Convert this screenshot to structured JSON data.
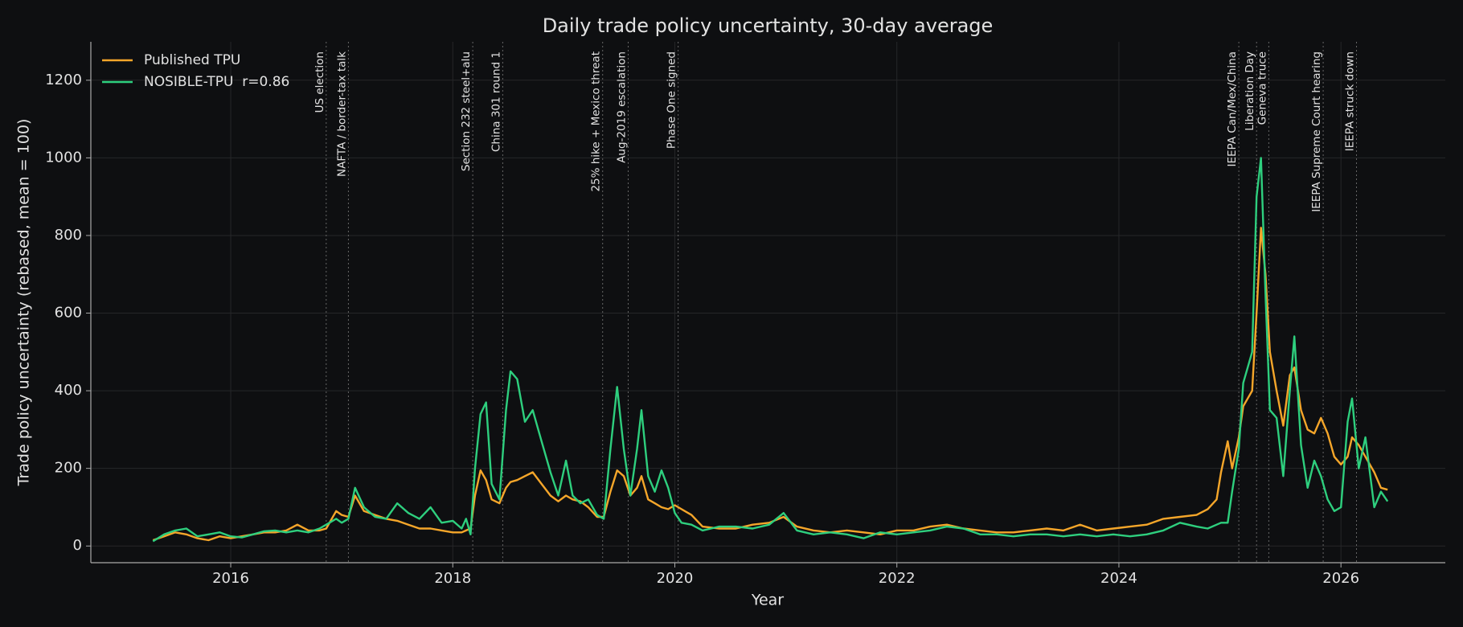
{
  "chart_data": {
    "type": "line",
    "title": "Daily trade policy uncertainty, 30-day average",
    "xlabel": "Year",
    "ylabel": "Trade policy uncertainty (rebased, mean = 100)",
    "xlim": [
      2014.74,
      2026.94
    ],
    "ylim": [
      -43,
      1299
    ],
    "xticks": [
      2016,
      2018,
      2020,
      2022,
      2024,
      2026
    ],
    "yticks": [
      0,
      200,
      400,
      600,
      800,
      1000,
      1200
    ],
    "grid": true,
    "legend": "upper left",
    "x": [
      2015.3,
      2015.4,
      2015.5,
      2015.6,
      2015.7,
      2015.8,
      2015.9,
      2016.0,
      2016.1,
      2016.2,
      2016.3,
      2016.4,
      2016.5,
      2016.6,
      2016.7,
      2016.8,
      2016.86,
      2016.95,
      2017.0,
      2017.06,
      2017.12,
      2017.2,
      2017.3,
      2017.4,
      2017.5,
      2017.6,
      2017.7,
      2017.8,
      2017.9,
      2018.0,
      2018.08,
      2018.12,
      2018.16,
      2018.2,
      2018.25,
      2018.3,
      2018.35,
      2018.42,
      2018.48,
      2018.52,
      2018.58,
      2018.65,
      2018.72,
      2018.8,
      2018.88,
      2018.95,
      2019.02,
      2019.08,
      2019.15,
      2019.22,
      2019.3,
      2019.36,
      2019.42,
      2019.48,
      2019.54,
      2019.6,
      2019.66,
      2019.7,
      2019.76,
      2019.82,
      2019.88,
      2019.94,
      2020.0,
      2020.06,
      2020.15,
      2020.25,
      2020.4,
      2020.55,
      2020.7,
      2020.85,
      2020.98,
      2021.1,
      2021.25,
      2021.4,
      2021.55,
      2021.7,
      2021.85,
      2022.0,
      2022.15,
      2022.3,
      2022.45,
      2022.6,
      2022.75,
      2022.9,
      2023.05,
      2023.2,
      2023.35,
      2023.5,
      2023.65,
      2023.8,
      2023.95,
      2024.1,
      2024.25,
      2024.4,
      2024.55,
      2024.7,
      2024.8,
      2024.88,
      2024.92,
      2024.98,
      2025.02,
      2025.08,
      2025.12,
      2025.16,
      2025.2,
      2025.24,
      2025.28,
      2025.32,
      2025.36,
      2025.42,
      2025.48,
      2025.54,
      2025.58,
      2025.64,
      2025.7,
      2025.76,
      2025.82,
      2025.88,
      2025.94,
      2026.0,
      2026.06,
      2026.1,
      2026.16,
      2026.22,
      2026.3,
      2026.36,
      2026.42
    ],
    "series": [
      {
        "name": "Published TPU",
        "color": "#f5a62a",
        "values": [
          15,
          25,
          35,
          30,
          20,
          15,
          25,
          20,
          25,
          30,
          35,
          35,
          40,
          55,
          40,
          40,
          45,
          90,
          80,
          75,
          130,
          90,
          80,
          70,
          65,
          55,
          45,
          45,
          40,
          35,
          35,
          40,
          45,
          130,
          195,
          170,
          120,
          110,
          150,
          165,
          170,
          180,
          190,
          160,
          130,
          115,
          130,
          120,
          115,
          100,
          75,
          75,
          140,
          195,
          180,
          130,
          150,
          180,
          120,
          110,
          100,
          95,
          105,
          95,
          80,
          50,
          45,
          45,
          55,
          60,
          75,
          50,
          40,
          35,
          40,
          35,
          30,
          40,
          40,
          50,
          55,
          45,
          40,
          35,
          35,
          40,
          45,
          40,
          55,
          40,
          45,
          50,
          55,
          70,
          75,
          80,
          95,
          120,
          190,
          270,
          200,
          280,
          360,
          380,
          400,
          600,
          820,
          700,
          500,
          400,
          310,
          440,
          460,
          350,
          300,
          290,
          330,
          290,
          230,
          210,
          230,
          280,
          260,
          230,
          190,
          150,
          145
        ]
      },
      {
        "name": "NOSIBLE-TPU  r=0.86",
        "color": "#2ecf7e",
        "values": [
          12,
          30,
          40,
          45,
          25,
          30,
          35,
          25,
          22,
          30,
          38,
          40,
          35,
          40,
          35,
          45,
          55,
          70,
          60,
          70,
          150,
          100,
          75,
          70,
          110,
          85,
          70,
          100,
          60,
          65,
          45,
          70,
          30,
          200,
          340,
          370,
          160,
          120,
          350,
          450,
          430,
          320,
          350,
          270,
          190,
          130,
          220,
          130,
          110,
          120,
          80,
          70,
          250,
          410,
          250,
          130,
          250,
          350,
          180,
          140,
          195,
          150,
          85,
          60,
          55,
          40,
          50,
          50,
          45,
          55,
          85,
          40,
          30,
          35,
          30,
          20,
          35,
          30,
          35,
          40,
          50,
          45,
          30,
          30,
          25,
          30,
          30,
          25,
          30,
          25,
          30,
          25,
          30,
          40,
          60,
          50,
          45,
          55,
          60,
          60,
          140,
          250,
          420,
          460,
          500,
          900,
          1000,
          650,
          350,
          330,
          180,
          400,
          540,
          260,
          150,
          220,
          180,
          120,
          90,
          100,
          320,
          380,
          200,
          280,
          100,
          140,
          115
        ]
      }
    ],
    "events": [
      {
        "label": "US election",
        "x": 2016.86
      },
      {
        "label": "NAFTA / border-tax talk",
        "x": 2017.06
      },
      {
        "label": "Section 232 steel+alu",
        "x": 2018.18
      },
      {
        "label": "China 301 round 1",
        "x": 2018.45
      },
      {
        "label": "25% hike + Mexico threat",
        "x": 2019.35
      },
      {
        "label": "Aug-2019 escalation",
        "x": 2019.58
      },
      {
        "label": "Phase One signed",
        "x": 2020.03
      },
      {
        "label": "IEEPA Can/Mex/China",
        "x": 2025.08
      },
      {
        "label": "Liberation Day",
        "x": 2025.24
      },
      {
        "label": "Geneva truce",
        "x": 2025.35
      },
      {
        "label": "IEEPA Supreme Court hearing",
        "x": 2025.84
      },
      {
        "label": "IEEPA struck down",
        "x": 2026.14
      }
    ]
  }
}
